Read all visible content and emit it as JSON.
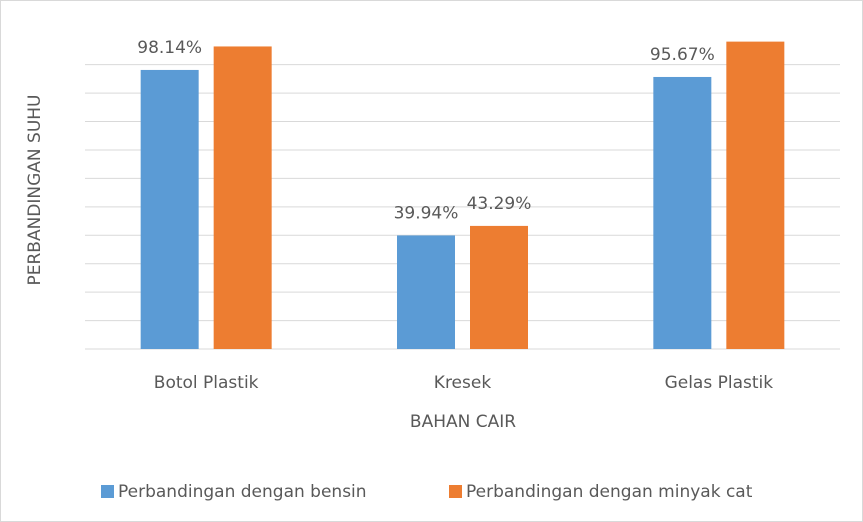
{
  "chart_data": {
    "type": "bar",
    "categories": [
      "Botol Plastik",
      "Kresek",
      "Gelas Plastik"
    ],
    "series": [
      {
        "name": "Perbandingan dengan bensin",
        "color": "#5b9bd5",
        "values": [
          98.14,
          39.94,
          95.67
        ],
        "value_labels": [
          "98.14%",
          "39.94%",
          "95.67%"
        ]
      },
      {
        "name": "Perbandingan dengan minyak cat",
        "color": "#ed7d31",
        "values": [
          106.4,
          43.29,
          108.1
        ],
        "value_labels": [
          null,
          "43.29%",
          null
        ]
      }
    ],
    "x_label": "BAHAN CAIR",
    "y_label": "PERBANDINGAN SUHU",
    "ylim": [
      0,
      115
    ],
    "yticks": [
      0,
      10,
      20,
      30,
      40,
      50,
      60,
      70,
      80,
      90,
      100
    ],
    "grid": true,
    "legend": "bottom"
  }
}
